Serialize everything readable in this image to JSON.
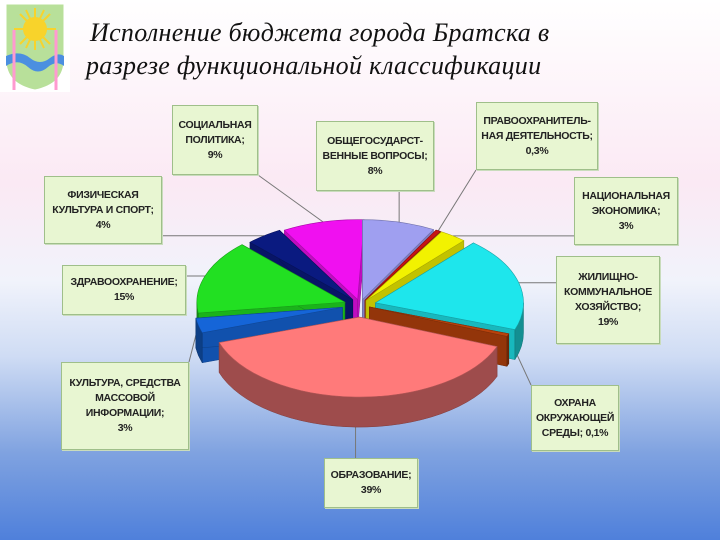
{
  "title_lines": [
    "Исполнение бюджета города Братска в",
    "разрезе функциональной классификации"
  ],
  "colors": {
    "logo_bg": "#b8e09a",
    "logo_sun": "#f8d32b",
    "logo_river": "#4b8fe0",
    "label_bg": "#e8f6d2"
  },
  "chart_data": {
    "type": "pie",
    "title": "Исполнение бюджета города Братска в разрезе функциональной классификации",
    "slices": [
      {
        "label": "ОБЩЕГОСУДАРСТ-\nВЕННЫЕ ВОПРОСЫ;\n8%",
        "value": 8,
        "color": "#9f9ff0"
      },
      {
        "label": "ПРАВООХРАНИТЕЛЬ-\nНАЯ ДЕЯТЕЛЬНОСТЬ;\n0,3%",
        "value": 0.3,
        "color": "#c81414"
      },
      {
        "label": "НАЦИОНАЛЬНАЯ\nЭКОНОМИКА;\n3%",
        "value": 3,
        "color": "#f2f200"
      },
      {
        "label": "ЖИЛИЩНО-\nКОММУНАЛЬНОЕ\nХОЗЯЙСТВО;\n19%",
        "value": 19,
        "color": "#1ee6ec"
      },
      {
        "label": "ОХРАНА\nОКРУЖАЮЩЕЙ\nСРЕДЫ; 0,1%",
        "value": 0.1,
        "color": "#b8420c"
      },
      {
        "label": "ОБРАЗОВАНИЕ;\n39%",
        "value": 39,
        "color": "#ff7a7a"
      },
      {
        "label": "КУЛЬТУРА, СРЕДСТВА\nМАССОВОЙ\nИНФОРМАЦИИ;\n3%",
        "value": 3,
        "color": "#1565d8"
      },
      {
        "label": "ЗДРАВООХРАНЕНИЕ;\n15%",
        "value": 15,
        "color": "#22e022"
      },
      {
        "label": "ФИЗИЧЕСКАЯ\nКУЛЬТУРА И СПОРТ;\n4%",
        "value": 4,
        "color": "#0a1a80"
      },
      {
        "label": "СОЦИАЛЬНАЯ\nПОЛИТИКА;\n9%",
        "value": 9,
        "color": "#f010f0"
      }
    ]
  }
}
